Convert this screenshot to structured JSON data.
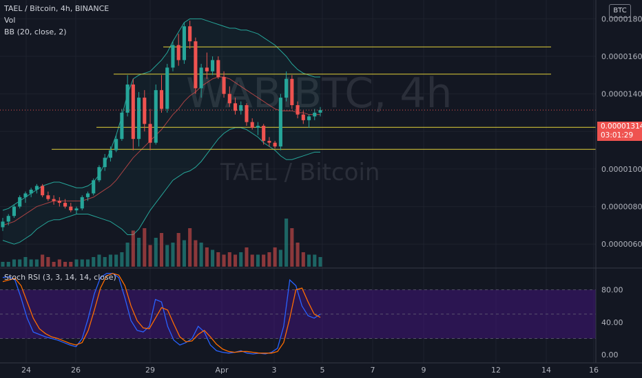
{
  "header": {
    "symbol_line": "TAEL / Bitcoin, 4h, BINANCE",
    "vol_label": "Vol",
    "bb_label": "BB (20, close, 2)",
    "rsi_label": "Stoch RSI (3, 3, 14, 14, close)",
    "currency_button": "BTC"
  },
  "watermark": {
    "big": "WABIBTC, 4h",
    "small": "TAEL / Bitcoin"
  },
  "last_price": {
    "value": "0.00001314",
    "countdown": "03:01:29"
  },
  "colors": {
    "up": "#26a69a",
    "down": "#ef5350",
    "bb_band": "#26a69a",
    "bb_basis": "#ef5350",
    "hline": "#e5d33a",
    "rsi_k": "#2962ff",
    "rsi_d": "#ff6d00",
    "rsi_bg": "#4a148c"
  },
  "chart_data": [
    {
      "type": "candlestick",
      "title": "TAEL / Bitcoin, 4h, BINANCE",
      "x_ticks": [
        "24",
        "26",
        "29",
        "Apr",
        "3",
        "5",
        "7",
        "9",
        "12",
        "14",
        "16"
      ],
      "y_ticks": [
        "0.00001800",
        "0.00001600",
        "0.00001400",
        "0.00001200",
        "0.00001000",
        "0.00000800",
        "0.00000600"
      ],
      "ylim": [
        4.8e-06,
        1.9e-05
      ],
      "series": [
        {
          "name": "price",
          "ohlc": [
            [
              6.9e-06,
              7.4e-06,
              6.7e-06,
              7.2e-06
            ],
            [
              7.2e-06,
              7.6e-06,
              7e-06,
              7.5e-06
            ],
            [
              7.5e-06,
              8.1e-06,
              7.4e-06,
              8e-06
            ],
            [
              8e-06,
              8.6e-06,
              7.9e-06,
              8.5e-06
            ],
            [
              8.5e-06,
              8.8e-06,
              8.2e-06,
              8.7e-06
            ],
            [
              8.7e-06,
              9e-06,
              8.5e-06,
              8.9e-06
            ],
            [
              8.9e-06,
              9.2e-06,
              8.7e-06,
              9.1e-06
            ],
            [
              9.1e-06,
              9.2e-06,
              8.5e-06,
              8.6e-06
            ],
            [
              8.6e-06,
              8.8e-06,
              8.3e-06,
              8.4e-06
            ],
            [
              8.4e-06,
              8.6e-06,
              8.1e-06,
              8.3e-06
            ],
            [
              8.3e-06,
              8.5e-06,
              8e-06,
              8.2e-06
            ],
            [
              8.2e-06,
              8.4e-06,
              7.9e-06,
              8e-06
            ],
            [
              8e-06,
              8.2e-06,
              7.7e-06,
              7.8e-06
            ],
            [
              7.8e-06,
              8e-06,
              7.6e-06,
              7.9e-06
            ],
            [
              7.9e-06,
              8.6e-06,
              7.8e-06,
              8.5e-06
            ],
            [
              8.5e-06,
              8.8e-06,
              8.3e-06,
              8.7e-06
            ],
            [
              8.7e-06,
              9.5e-06,
              8.6e-06,
              9.4e-06
            ],
            [
              9.4e-06,
              1.02e-05,
              9.3e-06,
              1.01e-05
            ],
            [
              1.01e-05,
              1.08e-05,
              9.9e-06,
              1.06e-05
            ],
            [
              1.06e-05,
              1.12e-05,
              1.04e-05,
              1.1e-05
            ],
            [
              1.1e-05,
              1.18e-05,
              1.09e-05,
              1.16e-05
            ],
            [
              1.16e-05,
              1.32e-05,
              1.15e-05,
              1.3e-05
            ],
            [
              1.3e-05,
              1.5e-05,
              1.28e-05,
              1.45e-05
            ],
            [
              1.45e-05,
              1.48e-05,
              1.1e-05,
              1.16e-05
            ],
            [
              1.16e-05,
              1.41e-05,
              1.12e-05,
              1.38e-05
            ],
            [
              1.38e-05,
              1.42e-05,
              1.2e-05,
              1.24e-05
            ],
            [
              1.24e-05,
              1.32e-05,
              1.1e-05,
              1.14e-05
            ],
            [
              1.14e-05,
              1.45e-05,
              1.13e-05,
              1.42e-05
            ],
            [
              1.42e-05,
              1.5e-05,
              1.3e-05,
              1.32e-05
            ],
            [
              1.32e-05,
              1.56e-05,
              1.3e-05,
              1.54e-05
            ],
            [
              1.54e-05,
              1.68e-05,
              1.52e-05,
              1.66e-05
            ],
            [
              1.66e-05,
              1.72e-05,
              1.55e-05,
              1.58e-05
            ],
            [
              1.58e-05,
              1.78e-05,
              1.56e-05,
              1.76e-05
            ],
            [
              1.76e-05,
              1.79e-05,
              1.64e-05,
              1.68e-05
            ],
            [
              1.68e-05,
              1.7e-05,
              1.4e-05,
              1.43e-05
            ],
            [
              1.43e-05,
              1.56e-05,
              1.38e-05,
              1.54e-05
            ],
            [
              1.54e-05,
              1.62e-05,
              1.48e-05,
              1.52e-05
            ],
            [
              1.52e-05,
              1.6e-05,
              1.5e-05,
              1.58e-05
            ],
            [
              1.58e-05,
              1.6e-05,
              1.48e-05,
              1.49e-05
            ],
            [
              1.49e-05,
              1.52e-05,
              1.38e-05,
              1.4e-05
            ],
            [
              1.4e-05,
              1.44e-05,
              1.33e-05,
              1.35e-05
            ],
            [
              1.35e-05,
              1.38e-05,
              1.29e-05,
              1.31e-05
            ],
            [
              1.31e-05,
              1.36e-05,
              1.29e-05,
              1.34e-05
            ],
            [
              1.34e-05,
              1.35e-05,
              1.23e-05,
              1.25e-05
            ],
            [
              1.25e-05,
              1.27e-05,
              1.21e-05,
              1.22e-05
            ],
            [
              1.22e-05,
              1.25e-05,
              1.18e-05,
              1.23e-05
            ],
            [
              1.23e-05,
              1.24e-05,
              1.13e-05,
              1.15e-05
            ],
            [
              1.15e-05,
              1.17e-05,
              1.12e-05,
              1.14e-05
            ],
            [
              1.14e-05,
              1.15e-05,
              1.11e-05,
              1.12e-05
            ],
            [
              1.12e-05,
              1.4e-05,
              1.1e-05,
              1.38e-05
            ],
            [
              1.38e-05,
              1.52e-05,
              1.36e-05,
              1.48e-05
            ],
            [
              1.48e-05,
              1.5e-05,
              1.32e-05,
              1.34e-05
            ],
            [
              1.34e-05,
              1.36e-05,
              1.27e-05,
              1.29e-05
            ],
            [
              1.29e-05,
              1.31e-05,
              1.24e-05,
              1.26e-05
            ],
            [
              1.26e-05,
              1.29e-05,
              1.22e-05,
              1.28e-05
            ],
            [
              1.28e-05,
              1.32e-05,
              1.26e-05,
              1.3e-05
            ],
            [
              1.3e-05,
              1.33e-05,
              1.28e-05,
              1.314e-05
            ]
          ]
        }
      ],
      "bollinger": {
        "upper": [
          7.8e-06,
          7.9e-06,
          8.1e-06,
          8.3e-06,
          8.5e-06,
          8.7e-06,
          8.9e-06,
          9.1e-06,
          9.2e-06,
          9.3e-06,
          9.3e-06,
          9.2e-06,
          9.1e-06,
          9e-06,
          9e-06,
          9.1e-06,
          9.3e-06,
          9.7e-06,
          1.03e-05,
          1.1e-05,
          1.18e-05,
          1.28e-05,
          1.4e-05,
          1.48e-05,
          1.5e-05,
          1.51e-05,
          1.52e-05,
          1.55e-05,
          1.58e-05,
          1.62e-05,
          1.68e-05,
          1.73e-05,
          1.78e-05,
          1.8e-05,
          1.8e-05,
          1.8e-05,
          1.79e-05,
          1.78e-05,
          1.77e-05,
          1.76e-05,
          1.75e-05,
          1.75e-05,
          1.74e-05,
          1.74e-05,
          1.73e-05,
          1.72e-05,
          1.7e-05,
          1.68e-05,
          1.66e-05,
          1.63e-05,
          1.6e-05,
          1.56e-05,
          1.53e-05,
          1.51e-05,
          1.5e-05,
          1.49e-05,
          1.49e-05
        ],
        "basis": [
          7e-06,
          7.1e-06,
          7.2e-06,
          7.4e-06,
          7.6e-06,
          7.8e-06,
          8e-06,
          8.1e-06,
          8.2e-06,
          8.3e-06,
          8.3e-06,
          8.3e-06,
          8.3e-06,
          8.3e-06,
          8.3e-06,
          8.4e-06,
          8.5e-06,
          8.7e-06,
          8.9e-06,
          9.1e-06,
          9.4e-06,
          9.8e-06,
          1.02e-05,
          1.06e-05,
          1.09e-05,
          1.12e-05,
          1.15e-05,
          1.18e-05,
          1.21e-05,
          1.25e-05,
          1.29e-05,
          1.32e-05,
          1.36e-05,
          1.39e-05,
          1.41e-05,
          1.44e-05,
          1.46e-05,
          1.48e-05,
          1.49e-05,
          1.49e-05,
          1.48e-05,
          1.46e-05,
          1.44e-05,
          1.42e-05,
          1.4e-05,
          1.38e-05,
          1.36e-05,
          1.34e-05,
          1.32e-05,
          1.31e-05,
          1.31e-05,
          1.31e-05,
          1.3e-05,
          1.3e-05,
          1.29e-05,
          1.29e-05,
          1.29e-05
        ],
        "lower": [
          6.2e-06,
          6.1e-06,
          6e-06,
          6.1e-06,
          6.3e-06,
          6.5e-06,
          6.8e-06,
          7e-06,
          7.2e-06,
          7.3e-06,
          7.3e-06,
          7.4e-06,
          7.5e-06,
          7.6e-06,
          7.6e-06,
          7.6e-06,
          7.5e-06,
          7.4e-06,
          7.3e-06,
          7.2e-06,
          7e-06,
          6.8e-06,
          6.5e-06,
          6.5e-06,
          6.8e-06,
          7.3e-06,
          7.8e-06,
          8.2e-06,
          8.6e-06,
          9e-06,
          9.4e-06,
          9.6e-06,
          9.8e-06,
          9.9e-06,
          1.01e-05,
          1.04e-05,
          1.08e-05,
          1.12e-05,
          1.16e-05,
          1.19e-05,
          1.21e-05,
          1.22e-05,
          1.22e-05,
          1.21e-05,
          1.19e-05,
          1.17e-05,
          1.14e-05,
          1.12e-05,
          1.1e-05,
          1.07e-05,
          1.05e-05,
          1.05e-05,
          1.06e-05,
          1.07e-05,
          1.08e-05,
          1.09e-05,
          1.09e-05
        ]
      },
      "volume": [
        2,
        2,
        3,
        3,
        4,
        3,
        3,
        5,
        4,
        2,
        3,
        2,
        2,
        3,
        3,
        3,
        4,
        5,
        4,
        5,
        5,
        6,
        10,
        15,
        12,
        16,
        9,
        12,
        14,
        9,
        10,
        14,
        11,
        16,
        11,
        10,
        8,
        7,
        6,
        5,
        6,
        5,
        6,
        8,
        5,
        5,
        5,
        6,
        8,
        7,
        20,
        16,
        10,
        6,
        5,
        5,
        4
      ],
      "horizontal_lines": [
        {
          "price": 1.65e-05
        },
        {
          "price": 1.505e-05
        },
        {
          "price": 1.222e-05
        },
        {
          "price": 1.105e-05
        }
      ]
    },
    {
      "type": "line",
      "title": "Stoch RSI (3, 3, 14, 14, close)",
      "y_ticks": [
        "80.00",
        "40.00",
        "0.00"
      ],
      "ylim": [
        -10,
        105
      ],
      "band": [
        20,
        80
      ],
      "series": [
        {
          "name": "%K",
          "values": [
            95,
            96,
            92,
            70,
            45,
            28,
            25,
            22,
            20,
            18,
            15,
            12,
            10,
            20,
            45,
            75,
            95,
            100,
            100,
            95,
            70,
            42,
            30,
            28,
            35,
            68,
            65,
            35,
            18,
            12,
            15,
            20,
            35,
            28,
            12,
            5,
            3,
            2,
            3,
            5,
            2,
            1,
            2,
            1,
            3,
            8,
            35,
            92,
            85,
            60,
            48,
            45,
            50
          ]
        },
        {
          "name": "%D",
          "values": [
            90,
            92,
            94,
            85,
            65,
            45,
            32,
            26,
            22,
            20,
            17,
            14,
            12,
            15,
            30,
            55,
            82,
            97,
            100,
            98,
            85,
            60,
            42,
            33,
            32,
            45,
            58,
            55,
            38,
            22,
            16,
            17,
            25,
            30,
            22,
            13,
            7,
            4,
            3,
            4,
            4,
            3,
            2,
            2,
            2,
            4,
            15,
            45,
            80,
            82,
            65,
            50,
            46
          ]
        }
      ]
    }
  ]
}
